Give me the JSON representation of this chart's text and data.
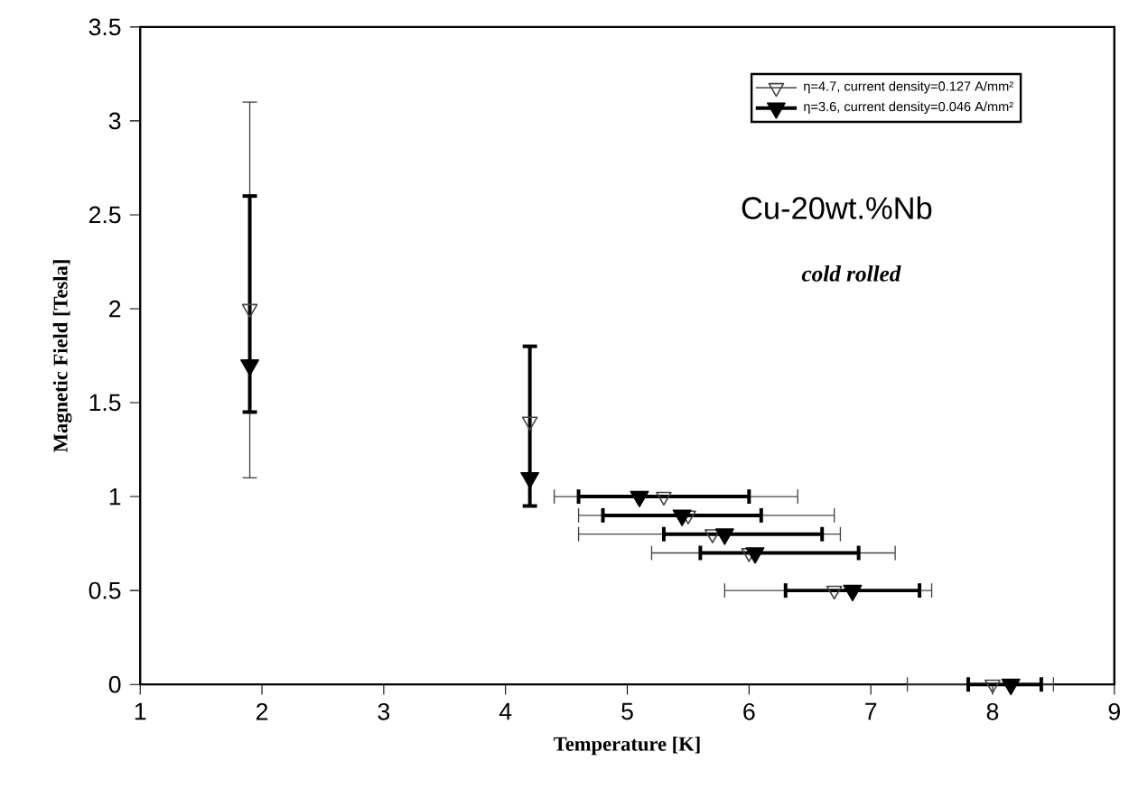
{
  "chart_data": {
    "type": "scatter",
    "xlabel": "Temperature [K]",
    "ylabel": "Magnetic Field [Tesla]",
    "xlim": [
      1,
      9
    ],
    "ylim": [
      0,
      3.5
    ],
    "xticks": [
      1,
      2,
      3,
      4,
      5,
      6,
      7,
      8,
      9
    ],
    "yticks": [
      0,
      0.5,
      1,
      1.5,
      2,
      2.5,
      3,
      3.5
    ],
    "marker": "triangle",
    "legend": "top right",
    "annotations": [
      "Cu-20wt.%Nb",
      "*cold rolled*"
    ],
    "series": [
      {
        "name": "η=4.7, current density=0.127 A/mm²",
        "color": "#444444",
        "x": [
          1.9,
          4.2,
          5.3,
          5.5,
          5.7,
          6.0,
          6.7,
          8.0
        ],
        "values": [
          2.0,
          1.4,
          1.0,
          0.9,
          0.8,
          0.7,
          0.5,
          0.0
        ],
        "errors": [
          [
            1.1,
            3.1
          ],
          null,
          null,
          null,
          null,
          null,
          null,
          null
        ],
        "xerrors": [
          null,
          null,
          [
            4.4,
            6.4
          ],
          [
            4.6,
            6.7
          ],
          [
            4.6,
            6.75
          ],
          [
            5.2,
            7.2
          ],
          [
            5.8,
            7.5
          ],
          [
            7.3,
            8.5
          ]
        ]
      },
      {
        "name": "η=3.6, current density=0.046 A/mm²",
        "color": "#000000",
        "x": [
          1.9,
          4.2,
          5.1,
          5.45,
          5.8,
          6.05,
          6.85,
          8.15
        ],
        "values": [
          1.7,
          1.1,
          1.0,
          0.9,
          0.8,
          0.7,
          0.5,
          0.0
        ],
        "errors": [
          [
            1.45,
            2.6
          ],
          [
            0.95,
            1.8
          ],
          null,
          null,
          null,
          null,
          null,
          null
        ],
        "xerrors": [
          null,
          null,
          [
            4.6,
            6.0
          ],
          [
            4.8,
            6.1
          ],
          [
            5.3,
            6.6
          ],
          [
            5.6,
            6.9
          ],
          [
            6.3,
            7.4
          ],
          [
            7.8,
            8.4
          ]
        ]
      }
    ]
  }
}
